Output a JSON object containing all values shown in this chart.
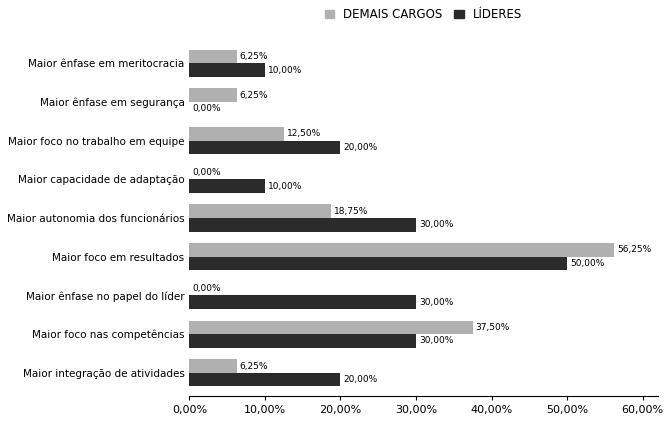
{
  "categories": [
    "Maior integração de atividades",
    "Maior foco nas competências",
    "Maior ênfase no papel do líder",
    "Maior foco em resultados",
    "Maior autonomia dos funcionários",
    "Maior capacidade de adaptação",
    "Maior foco no trabalho em equipe",
    "Maior ênfase em segurança",
    "Maior ênfase em meritocracia"
  ],
  "demais_cargos": [
    6.25,
    37.5,
    0.0,
    56.25,
    18.75,
    0.0,
    12.5,
    6.25,
    6.25
  ],
  "lideres": [
    20.0,
    30.0,
    30.0,
    50.0,
    30.0,
    10.0,
    20.0,
    0.0,
    10.0
  ],
  "color_demais": "#b0b0b0",
  "color_lideres": "#2b2b2b",
  "legend_demais": "DEMAIS CARGOS",
  "legend_lideres": "LÍDERES",
  "xlim": [
    0,
    62
  ],
  "xtick_labels": [
    "0,00%",
    "10,00%",
    "20,00%",
    "30,00%",
    "40,00%",
    "50,00%",
    "60,00%"
  ],
  "xtick_values": [
    0,
    10,
    20,
    30,
    40,
    50,
    60
  ],
  "bar_height": 0.35,
  "fontsize_labels": 7.5,
  "fontsize_ticks": 8,
  "fontsize_legend": 8.5,
  "fontsize_bar_labels": 6.5
}
